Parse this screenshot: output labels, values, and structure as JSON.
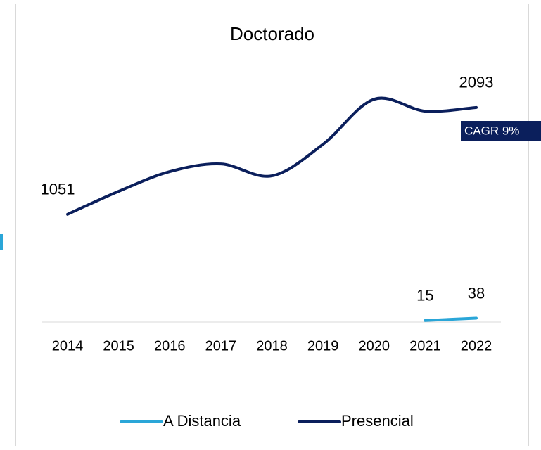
{
  "chart_data": {
    "type": "line",
    "title": "Doctorado",
    "categories": [
      "2014",
      "2015",
      "2016",
      "2017",
      "2018",
      "2019",
      "2020",
      "2021",
      "2022"
    ],
    "series": [
      {
        "name": "A Distancia",
        "color": "#2aa6d8",
        "values": [
          null,
          null,
          null,
          null,
          null,
          null,
          null,
          15,
          38
        ]
      },
      {
        "name": "Presencial",
        "color": "#0b1f5c",
        "values": [
          1051,
          1275,
          1467,
          1542,
          1426,
          1734,
          2173,
          2057,
          2093
        ]
      }
    ],
    "annotation": "CAGR 9%",
    "ylim": [
      0,
      2500
    ],
    "legend": "bottom"
  }
}
